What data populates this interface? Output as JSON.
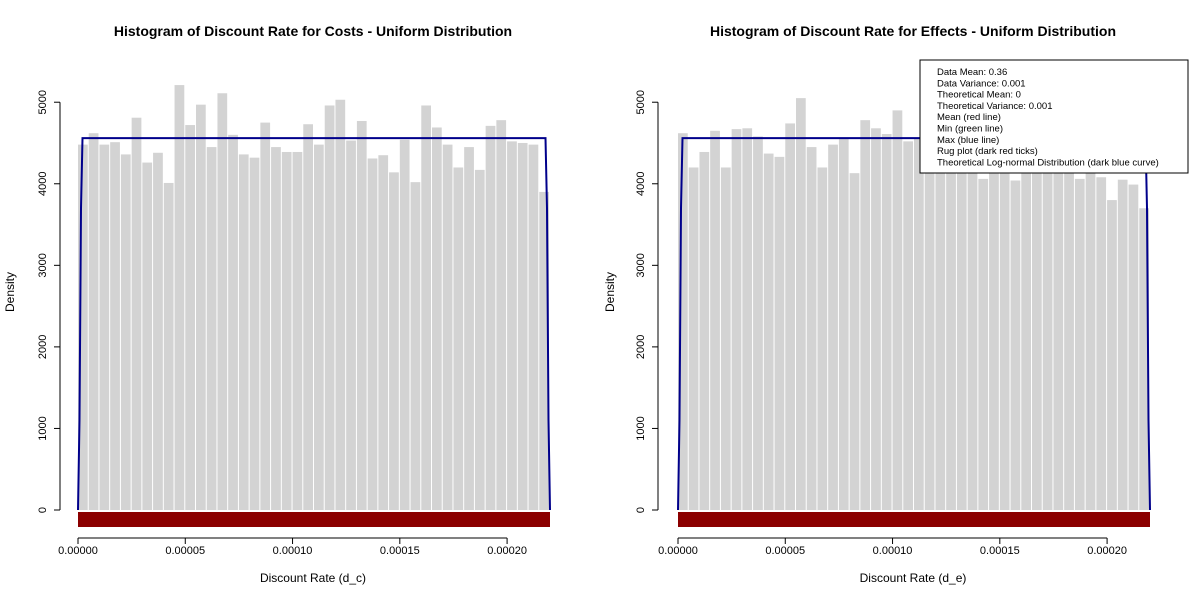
{
  "chart_data": [
    {
      "type": "bar",
      "title": "Histogram of Discount Rate for Costs - Uniform Distribution",
      "xlabel": "Discount Rate (d_c)",
      "ylabel": "Density",
      "xlim": [
        0,
        0.00022
      ],
      "ylim": [
        0,
        5200
      ],
      "x_ticks": [
        "0.00000",
        "0.00005",
        "0.00010",
        "0.00015",
        "0.00020"
      ],
      "x_tick_values": [
        0,
        5e-05,
        0.0001,
        0.00015,
        0.0002
      ],
      "y_ticks": [
        "0",
        "1000",
        "2000",
        "3000",
        "4000",
        "5000"
      ],
      "y_tick_values": [
        0,
        1000,
        2000,
        3000,
        4000,
        5000
      ],
      "bin_width": 5e-06,
      "bin_start": 0,
      "values": [
        4480,
        4620,
        4480,
        4510,
        4360,
        4810,
        4260,
        4380,
        4010,
        5210,
        4720,
        4970,
        4450,
        5110,
        4600,
        4360,
        4320,
        4750,
        4450,
        4390,
        4390,
        4730,
        4480,
        4960,
        5030,
        4530,
        4770,
        4310,
        4350,
        4140,
        4540,
        4020,
        4960,
        4690,
        4480,
        4200,
        4450,
        4170,
        4710,
        4780,
        4520,
        4500,
        4480,
        3900
      ],
      "bar_color": "#d3d3d3",
      "theoretical_curve": {
        "value": 4560,
        "x_min": 0,
        "x_max": 0.00022,
        "color": "#00008b"
      },
      "rug_color": "#8b0000",
      "legend": null
    },
    {
      "type": "bar",
      "title": "Histogram of Discount Rate for Effects - Uniform Distribution",
      "xlabel": "Discount Rate (d_e)",
      "ylabel": "Density",
      "xlim": [
        0,
        0.00022
      ],
      "ylim": [
        0,
        5200
      ],
      "x_ticks": [
        "0.00000",
        "0.00005",
        "0.00010",
        "0.00015",
        "0.00020"
      ],
      "x_tick_values": [
        0,
        5e-05,
        0.0001,
        0.00015,
        0.0002
      ],
      "y_ticks": [
        "0",
        "1000",
        "2000",
        "3000",
        "4000",
        "5000"
      ],
      "y_tick_values": [
        0,
        1000,
        2000,
        3000,
        4000,
        5000
      ],
      "bin_width": 5e-06,
      "bin_start": 0,
      "values": [
        4620,
        4200,
        4390,
        4650,
        4200,
        4670,
        4680,
        4580,
        4370,
        4330,
        4740,
        5050,
        4450,
        4200,
        4480,
        4560,
        4130,
        4780,
        4680,
        4610,
        4900,
        4520,
        4560,
        4340,
        4300,
        4580,
        4200,
        4400,
        4060,
        4210,
        4250,
        4040,
        4420,
        4200,
        4150,
        4410,
        4370,
        4060,
        4250,
        4080,
        3800,
        4050,
        3990,
        3700
      ],
      "bar_color": "#d3d3d3",
      "theoretical_curve": {
        "value": 4560,
        "x_min": 0,
        "x_max": 0.00022,
        "color": "#00008b"
      },
      "rug_color": "#8b0000",
      "legend": {
        "placement": "top-right",
        "lines": [
          "Data Mean:  0.36",
          "Data Variance:  0.001",
          "Theoretical Mean:  0",
          "Theoretical Variance:  0.001",
          "Mean (red line)",
          "Min (green line)",
          "Max (blue line)",
          "Rug plot (dark red ticks)",
          "Theoretical Log-normal Distribution (dark blue curve)"
        ]
      }
    }
  ]
}
